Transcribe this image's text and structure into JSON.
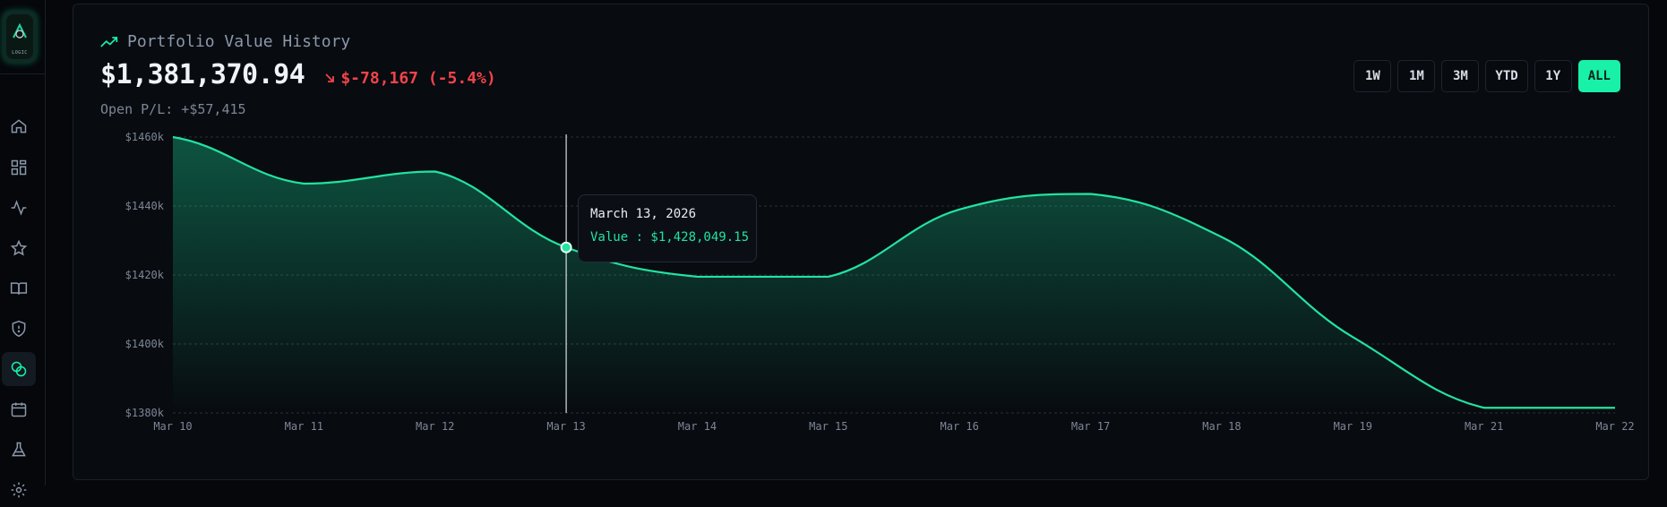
{
  "header": {
    "title": "Portfolio Value History",
    "value": "$1,381,370.94",
    "change": "$-78,167 (-5.4%)",
    "open_pl": "Open P/L: +$57,415"
  },
  "ranges": [
    {
      "label": "1W",
      "active": false
    },
    {
      "label": "1M",
      "active": false
    },
    {
      "label": "3M",
      "active": false
    },
    {
      "label": "YTD",
      "active": false
    },
    {
      "label": "1Y",
      "active": false
    },
    {
      "label": "ALL",
      "active": true
    }
  ],
  "tooltip": {
    "date": "March 13, 2026",
    "value": "Value : $1,428,049.15"
  },
  "colors": {
    "accent": "#19f0a8",
    "line": "#22e3a0",
    "negative": "#f0444a",
    "grid": "#2a303a"
  },
  "sidebar": {
    "logo_text": "LOGIC",
    "items": [
      {
        "icon": "home-icon"
      },
      {
        "icon": "dashboard-icon"
      },
      {
        "icon": "activity-icon"
      },
      {
        "icon": "star-icon"
      },
      {
        "icon": "book-icon"
      },
      {
        "icon": "shield-icon"
      },
      {
        "icon": "coins-icon",
        "active": true
      },
      {
        "icon": "calendar-icon"
      },
      {
        "icon": "flask-icon"
      },
      {
        "icon": "gear-icon"
      }
    ]
  },
  "chart_data": {
    "type": "area",
    "x": [
      "Mar 10",
      "Mar 11",
      "Mar 12",
      "Mar 13",
      "Mar 14",
      "Mar 15",
      "Mar 16",
      "Mar 17",
      "Mar 18",
      "Mar 19",
      "Mar 21",
      "Mar 22"
    ],
    "yticks": [
      "$1380k",
      "$1400k",
      "$1420k",
      "$1440k",
      "$1460k"
    ],
    "ylim": [
      1380,
      1460
    ],
    "grid": true,
    "series": [
      {
        "values": [
          1460,
          1446.5,
          1450,
          1428,
          1419.5,
          1419.5,
          1439,
          1443.5,
          1431,
          1402,
          1381.5,
          1381.5
        ]
      }
    ],
    "highlight_index": 3
  }
}
